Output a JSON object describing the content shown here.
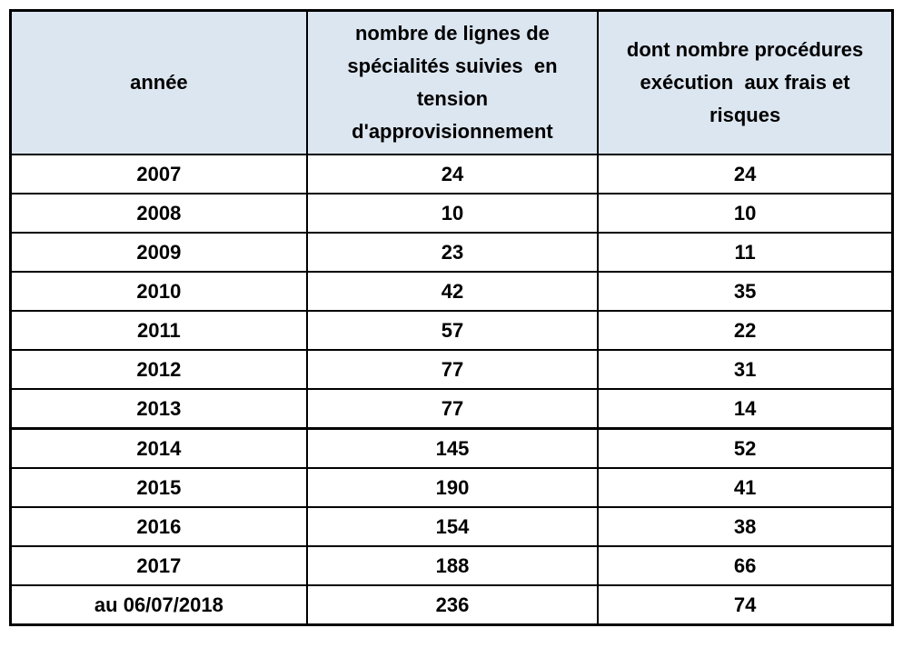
{
  "table": {
    "header": [
      "année",
      "nombre de lignes de\nspécialités suivies  en\ntension\nd'approvisionnement",
      "dont nombre procédures\nexécution  aux frais et\nrisques"
    ],
    "rows": [
      [
        "2007",
        "24",
        "24"
      ],
      [
        "2008",
        "10",
        "10"
      ],
      [
        "2009",
        "23",
        "11"
      ],
      [
        "2010",
        "42",
        "35"
      ],
      [
        "2011",
        "57",
        "22"
      ],
      [
        "2012",
        "77",
        "31"
      ],
      [
        "2013",
        "77",
        "14"
      ],
      [
        "2014",
        "145",
        "52"
      ],
      [
        "2015",
        "190",
        "41"
      ],
      [
        "2016",
        "154",
        "38"
      ],
      [
        "2017",
        "188",
        "66"
      ],
      [
        "au 06/07/2018",
        "236",
        "74"
      ]
    ],
    "colors": {
      "header_bg": "#dce6f1",
      "border": "#000000",
      "text": "#000000"
    }
  },
  "chart_data": {
    "type": "table",
    "title": "",
    "columns": [
      "année",
      "nombre de lignes de spécialités suivies en tension d'approvisionnement",
      "dont nombre procédures exécution aux frais et risques"
    ],
    "rows": [
      [
        "2007",
        24,
        24
      ],
      [
        "2008",
        10,
        10
      ],
      [
        "2009",
        23,
        11
      ],
      [
        "2010",
        42,
        35
      ],
      [
        "2011",
        57,
        22
      ],
      [
        "2012",
        77,
        31
      ],
      [
        "2013",
        77,
        14
      ],
      [
        "2014",
        145,
        52
      ],
      [
        "2015",
        190,
        41
      ],
      [
        "2016",
        154,
        38
      ],
      [
        "2017",
        188,
        66
      ],
      [
        "au 06/07/2018",
        236,
        74
      ]
    ],
    "notes": "grid on, bold black text, header row filled light blue #dce6f1, thicker rule between 2013 and 2014 rows"
  }
}
